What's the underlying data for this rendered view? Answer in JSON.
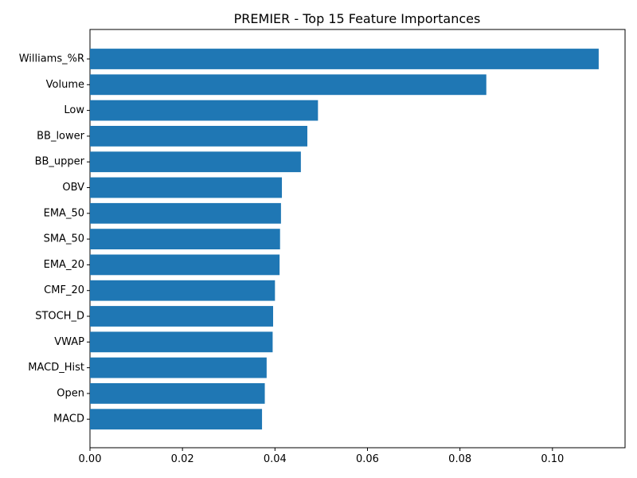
{
  "chart_data": {
    "type": "bar",
    "orientation": "horizontal",
    "title": "PREMIER - Top 15 Feature Importances",
    "xlabel": "",
    "ylabel": "",
    "categories": [
      "Williams_%R",
      "Volume",
      "Low",
      "BB_lower",
      "BB_upper",
      "OBV",
      "EMA_50",
      "SMA_50",
      "EMA_20",
      "CMF_20",
      "STOCH_D",
      "VWAP",
      "MACD_Hist",
      "Open",
      "MACD"
    ],
    "values": [
      0.11,
      0.0857,
      0.0493,
      0.047,
      0.0456,
      0.0415,
      0.0413,
      0.0411,
      0.041,
      0.04,
      0.0396,
      0.0395,
      0.0382,
      0.0378,
      0.0372
    ],
    "xlim": [
      0,
      0.1157
    ],
    "xticks": [
      "0.00",
      "0.02",
      "0.04",
      "0.06",
      "0.08",
      "0.10"
    ],
    "xtick_values": [
      0,
      0.02,
      0.04,
      0.06,
      0.08,
      0.1
    ],
    "grid": false,
    "bar_color": "#1f77b4"
  }
}
